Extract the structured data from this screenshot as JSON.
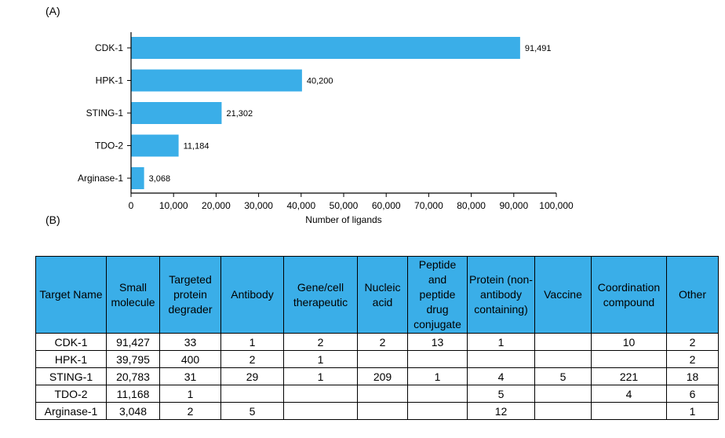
{
  "panel_a_label": "(A)",
  "panel_b_label": "(B)",
  "chart_data": {
    "type": "bar",
    "orientation": "horizontal",
    "categories": [
      "CDK-1",
      "HPK-1",
      "STING-1",
      "TDO-2",
      "Arginase-1"
    ],
    "values": [
      91491,
      40200,
      21302,
      11184,
      3068
    ],
    "value_labels": [
      "91,491",
      "40,200",
      "21,302",
      "11,184",
      "3,068"
    ],
    "xlabel": "Number of ligands",
    "xlim": [
      0,
      100000
    ],
    "x_ticks": [
      0,
      10000,
      20000,
      30000,
      40000,
      50000,
      60000,
      70000,
      80000,
      90000,
      100000
    ],
    "x_tick_labels": [
      "0",
      "10,000",
      "20,000",
      "30,000",
      "40,000",
      "50,000",
      "60,000",
      "70,000",
      "80,000",
      "90,000",
      "100,000"
    ],
    "bar_color": "#3aaee8",
    "grid": false
  },
  "table": {
    "header_color": "#3aaee8",
    "headers": [
      "Target Name",
      "Small molecule",
      "Targeted protein degrader",
      "Antibody",
      "Gene/cell therapeutic",
      "Nucleic acid",
      "Peptide and peptide drug conjugate",
      "Protein (non-antibody containing)",
      "Vaccine",
      "Coordination compound",
      "Other"
    ],
    "rows": [
      [
        "CDK-1",
        "91,427",
        "33",
        "1",
        "2",
        "2",
        "13",
        "1",
        "",
        "10",
        "2"
      ],
      [
        "HPK-1",
        "39,795",
        "400",
        "2",
        "1",
        "",
        "",
        "",
        "",
        "",
        "2"
      ],
      [
        "STING-1",
        "20,783",
        "31",
        "29",
        "1",
        "209",
        "1",
        "4",
        "5",
        "221",
        "18"
      ],
      [
        "TDO-2",
        "11,168",
        "1",
        "",
        "",
        "",
        "",
        "5",
        "",
        "4",
        "6"
      ],
      [
        "Arginase-1",
        "3,048",
        "2",
        "5",
        "",
        "",
        "",
        "12",
        "",
        "",
        "1"
      ]
    ]
  }
}
